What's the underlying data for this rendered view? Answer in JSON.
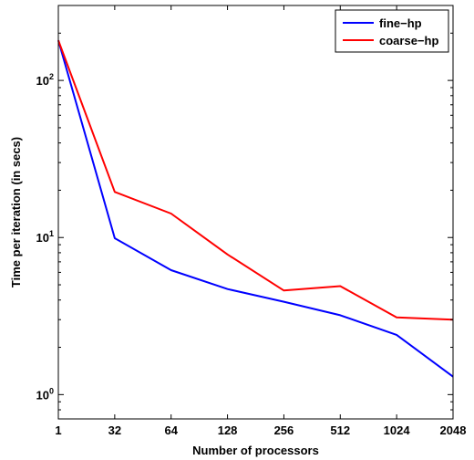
{
  "chart_data": {
    "type": "line",
    "title": "",
    "xlabel": "Number of processors",
    "ylabel": "Time per iteration (in secs)",
    "y_scale": "log",
    "ylim": [
      0.7,
      300
    ],
    "grid": false,
    "legend_position": "top-right",
    "x": [
      "1",
      "32",
      "64",
      "128",
      "256",
      "512",
      "1024",
      "2048"
    ],
    "y_ticks": [
      {
        "base": "10",
        "exp": "0",
        "value": 1
      },
      {
        "base": "10",
        "exp": "1",
        "value": 10
      },
      {
        "base": "10",
        "exp": "2",
        "value": 100
      }
    ],
    "series": [
      {
        "name": "fine−hp",
        "color": "#0000ff",
        "values": [
          180,
          9.9,
          6.2,
          4.7,
          3.9,
          3.2,
          2.4,
          1.3
        ]
      },
      {
        "name": "coarse−hp",
        "color": "#ff0000",
        "values": [
          180,
          19.5,
          14.2,
          7.8,
          4.6,
          4.9,
          3.1,
          3.0
        ]
      }
    ]
  }
}
